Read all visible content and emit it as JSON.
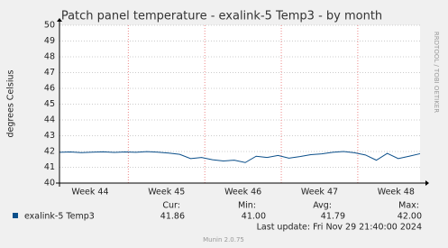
{
  "chart_data": {
    "type": "line",
    "title": "Patch panel temperature - exalink-5 Temp3 - by month",
    "y_label": "degrees Celsius",
    "x": [
      0,
      1,
      2,
      3,
      4,
      5,
      6,
      7,
      8,
      9,
      10,
      11,
      12,
      13,
      14,
      15,
      16,
      17,
      18,
      19,
      20,
      21,
      22,
      23,
      24,
      25,
      26,
      27,
      28,
      29,
      30,
      31,
      32,
      33
    ],
    "xlim": [
      0,
      33
    ],
    "xticks": [
      {
        "value": 2.8,
        "label": "Week 44"
      },
      {
        "value": 9.8,
        "label": "Week 45"
      },
      {
        "value": 16.8,
        "label": "Week 46"
      },
      {
        "value": 23.8,
        "label": "Week 47"
      },
      {
        "value": 30.8,
        "label": "Week 48"
      }
    ],
    "ylim": [
      40,
      50
    ],
    "yticks": [
      40,
      41,
      42,
      43,
      44,
      45,
      46,
      47,
      48,
      49,
      50
    ],
    "grid": true,
    "series": [
      {
        "name": "exalink-5 Temp3",
        "color": "#0b4f8a",
        "values": [
          41.95,
          41.97,
          41.93,
          41.96,
          41.98,
          41.94,
          41.97,
          41.95,
          41.99,
          41.96,
          41.9,
          41.82,
          41.55,
          41.62,
          41.48,
          41.4,
          41.45,
          41.3,
          41.7,
          41.62,
          41.75,
          41.58,
          41.68,
          41.8,
          41.85,
          41.95,
          42.0,
          41.92,
          41.78,
          41.45,
          41.88,
          41.55,
          41.7,
          41.86
        ]
      }
    ],
    "stats": {
      "headers": [
        "Cur:",
        "Min:",
        "Avg:",
        "Max:"
      ],
      "values": [
        "41.86",
        "41.00",
        "41.79",
        "42.00"
      ]
    },
    "last_update": "Last update: Fri Nov 29 21:40:00 2024",
    "footer": "Munin 2.0.75",
    "side_text": "RRDTOOL / TOBI OETIKER"
  }
}
